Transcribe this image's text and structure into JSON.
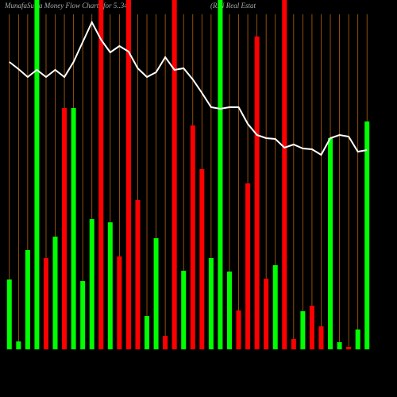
{
  "chart_data": {
    "type": "bar",
    "title": "MunafaSutra  Money Flow  Charts for 5..346",
    "subtitle": "(RIN Real Estat",
    "grid": true,
    "grid_color": "#b8600b",
    "background": "#000000",
    "ylim": [
      0,
      440
    ],
    "values": [
      88,
      10,
      125,
      440,
      115,
      142,
      304,
      304,
      86,
      164,
      440,
      160,
      117,
      440,
      188,
      42,
      140,
      17,
      440,
      99,
      282,
      227,
      115,
      440,
      98,
      49,
      209,
      394,
      89,
      106,
      440,
      13,
      48,
      55,
      29,
      266,
      9,
      3,
      25,
      287
    ],
    "colors": [
      "#00ff00",
      "#00ff00",
      "#00ff00",
      "#00ff00",
      "#ff0000",
      "#00ff00",
      "#ff0000",
      "#00ff00",
      "#00ff00",
      "#00ff00",
      "#ff0000",
      "#00ff00",
      "#ff0000",
      "#ff0000",
      "#ff0000",
      "#00ff00",
      "#00ff00",
      "#ff0000",
      "#ff0000",
      "#00ff00",
      "#ff0000",
      "#ff0000",
      "#00ff00",
      "#00ff00",
      "#00ff00",
      "#ff0000",
      "#ff0000",
      "#ff0000",
      "#ff0000",
      "#00ff00",
      "#ff0000",
      "#ff0000",
      "#00ff00",
      "#ff0000",
      "#ff0000",
      "#00ff00",
      "#00ff00",
      "#ff0000",
      "#00ff00",
      "#00ff00"
    ],
    "line": {
      "color": "#ffffff",
      "values": [
        362,
        353,
        343,
        352,
        343,
        352,
        343,
        362,
        387,
        412,
        390,
        374,
        382,
        375,
        354,
        343,
        349,
        368,
        352,
        354,
        340,
        323,
        305,
        303,
        305,
        305,
        284,
        270,
        266,
        265,
        254,
        258,
        253,
        252,
        245,
        266,
        270,
        268,
        249,
        251
      ]
    }
  }
}
